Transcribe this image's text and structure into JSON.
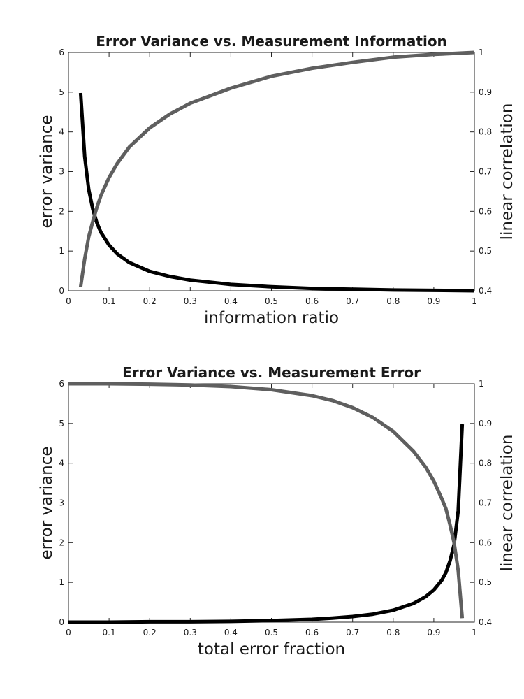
{
  "chart_data": [
    {
      "type": "line",
      "title": "Error Variance vs. Measurement Information",
      "xlabel": "information ratio",
      "ylabel": "error variance",
      "y2label": "linear correlation",
      "xlim": [
        0,
        1
      ],
      "ylim": [
        0,
        6
      ],
      "y2lim": [
        0.4,
        1
      ],
      "xticks": [
        "0",
        "0.1",
        "0.2",
        "0.3",
        "0.4",
        "0.5",
        "0.6",
        "0.7",
        "0.8",
        "0.9",
        "1"
      ],
      "yticks": [
        "0",
        "1",
        "2",
        "3",
        "4",
        "5",
        "6"
      ],
      "y2ticks": [
        "0.4",
        "0.5",
        "0.6",
        "0.7",
        "0.8",
        "0.9",
        "1"
      ],
      "grid": false,
      "series": [
        {
          "axis": "left",
          "color": "#000000",
          "x": [
            0.03,
            0.04,
            0.05,
            0.06,
            0.07,
            0.08,
            0.1,
            0.12,
            0.15,
            0.2,
            0.25,
            0.3,
            0.4,
            0.5,
            0.6,
            0.7,
            0.8,
            0.9,
            1.0
          ],
          "y": [
            4.98,
            3.38,
            2.55,
            2.05,
            1.71,
            1.47,
            1.15,
            0.93,
            0.71,
            0.49,
            0.36,
            0.27,
            0.16,
            0.1,
            0.06,
            0.04,
            0.02,
            0.01,
            0.0
          ]
        },
        {
          "axis": "right",
          "color": "#5f5f5f",
          "x": [
            0.03,
            0.04,
            0.05,
            0.06,
            0.07,
            0.08,
            0.1,
            0.12,
            0.15,
            0.2,
            0.25,
            0.3,
            0.4,
            0.5,
            0.6,
            0.7,
            0.8,
            0.9,
            1.0
          ],
          "y": [
            0.41,
            0.48,
            0.536,
            0.575,
            0.61,
            0.64,
            0.685,
            0.72,
            0.762,
            0.81,
            0.845,
            0.872,
            0.91,
            0.94,
            0.96,
            0.975,
            0.988,
            0.995,
            1.0
          ]
        }
      ]
    },
    {
      "type": "line",
      "title": "Error Variance vs. Measurement Error",
      "xlabel": "total error fraction",
      "ylabel": "error variance",
      "y2label": "linear correlation",
      "xlim": [
        0,
        1
      ],
      "ylim": [
        0,
        6
      ],
      "y2lim": [
        0.4,
        1
      ],
      "xticks": [
        "0",
        "0.1",
        "0.2",
        "0.3",
        "0.4",
        "0.5",
        "0.6",
        "0.7",
        "0.8",
        "0.9",
        "1"
      ],
      "yticks": [
        "0",
        "1",
        "2",
        "3",
        "4",
        "5",
        "6"
      ],
      "y2ticks": [
        "0.4",
        "0.5",
        "0.6",
        "0.7",
        "0.8",
        "0.9",
        "1"
      ],
      "grid": false,
      "series": [
        {
          "axis": "left",
          "color": "#000000",
          "x": [
            0.0,
            0.1,
            0.2,
            0.3,
            0.4,
            0.5,
            0.6,
            0.65,
            0.7,
            0.75,
            0.8,
            0.85,
            0.88,
            0.9,
            0.92,
            0.93,
            0.94,
            0.95,
            0.96,
            0.97
          ],
          "y": [
            0.0,
            0.0,
            0.01,
            0.01,
            0.02,
            0.04,
            0.07,
            0.1,
            0.14,
            0.2,
            0.3,
            0.47,
            0.64,
            0.81,
            1.06,
            1.25,
            1.54,
            1.95,
            2.8,
            4.98
          ]
        },
        {
          "axis": "right",
          "color": "#5f5f5f",
          "x": [
            0.0,
            0.1,
            0.2,
            0.3,
            0.4,
            0.5,
            0.6,
            0.65,
            0.7,
            0.75,
            0.8,
            0.85,
            0.88,
            0.9,
            0.92,
            0.93,
            0.94,
            0.95,
            0.96,
            0.97
          ],
          "y": [
            1.0,
            1.0,
            0.999,
            0.997,
            0.993,
            0.985,
            0.97,
            0.958,
            0.94,
            0.915,
            0.88,
            0.83,
            0.79,
            0.755,
            0.71,
            0.685,
            0.645,
            0.6,
            0.53,
            0.41
          ]
        }
      ]
    }
  ]
}
